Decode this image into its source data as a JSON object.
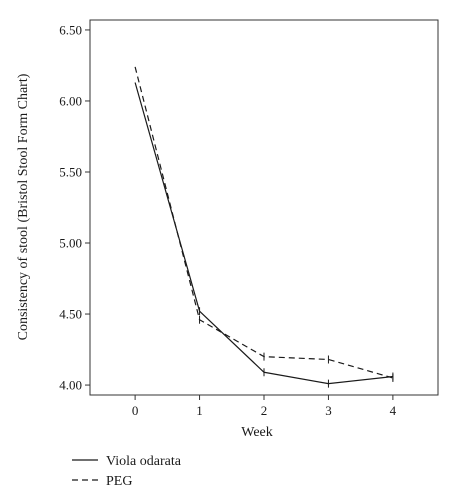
{
  "chart_data": {
    "type": "line",
    "x": [
      0,
      1,
      2,
      3,
      4
    ],
    "xticks": [
      "0",
      "1",
      "2",
      "3",
      "4"
    ],
    "yticks": [
      "4.00",
      "4.50",
      "5.00",
      "5.50",
      "6.00",
      "6.50"
    ],
    "xlabel": "Week",
    "ylabel": "Consistency of stool (Bristol Stool Form Chart)",
    "xlim": [
      -0.7,
      4.7
    ],
    "ylim": [
      3.93,
      6.57
    ],
    "ytick_values": [
      4.0,
      4.5,
      5.0,
      5.5,
      6.0,
      6.5
    ],
    "grid": false,
    "legend_position": "bottom-left, below plot",
    "series": [
      {
        "name": "Viola odarata",
        "style": "solid",
        "values": [
          6.13,
          4.52,
          4.09,
          4.01,
          4.06
        ],
        "color": "#1a1a1a"
      },
      {
        "name": "PEG",
        "style": "dashed",
        "values": [
          6.24,
          4.46,
          4.2,
          4.18,
          4.05
        ],
        "color": "#1a1a1a"
      }
    ]
  }
}
